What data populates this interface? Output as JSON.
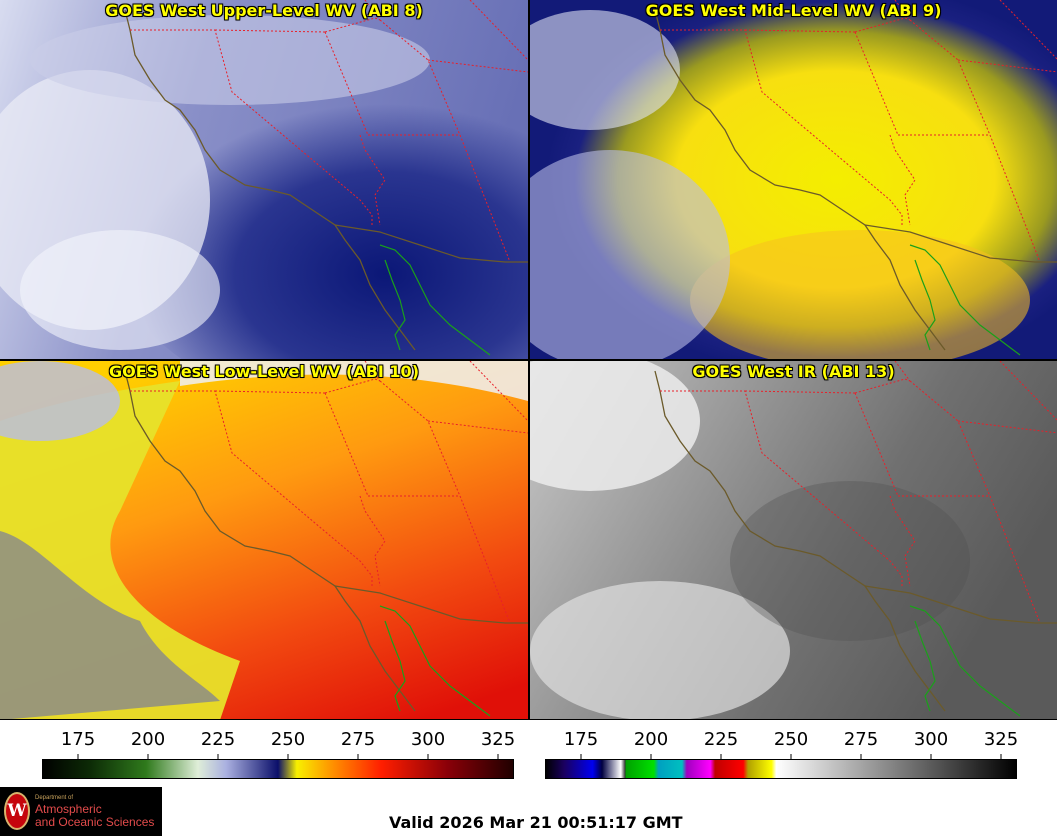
{
  "panels": [
    {
      "id": "p1",
      "title": "GOES West Upper-Level WV (ABI 8)",
      "palette": "upper"
    },
    {
      "id": "p2",
      "title": "GOES West Mid-Level WV (ABI 9)",
      "palette": "mid"
    },
    {
      "id": "p3",
      "title": "GOES West Low-Level WV (ABI 10)",
      "palette": "low"
    },
    {
      "id": "p4",
      "title": "GOES West IR (ABI 13)",
      "palette": "ir"
    }
  ],
  "colorbars": [
    {
      "name": "wv-colorbar",
      "ticks": [
        "175",
        "200",
        "225",
        "250",
        "275",
        "300",
        "325"
      ]
    },
    {
      "name": "ir-colorbar",
      "ticks": [
        "175",
        "200",
        "225",
        "250",
        "275",
        "300",
        "325"
      ]
    }
  ],
  "colors": {
    "state_borders": "#e8202a",
    "coastline": "#6b5a2a",
    "mexico_coast": "#1aa01a",
    "title_text": "#ffff00"
  },
  "logo": {
    "line1": "Department of",
    "line2": "Atmospheric",
    "line3": "and Oceanic Sciences",
    "icon": "uw-crest-icon"
  },
  "valid_time": "Valid 2026 Mar 21 00:51:17 GMT"
}
